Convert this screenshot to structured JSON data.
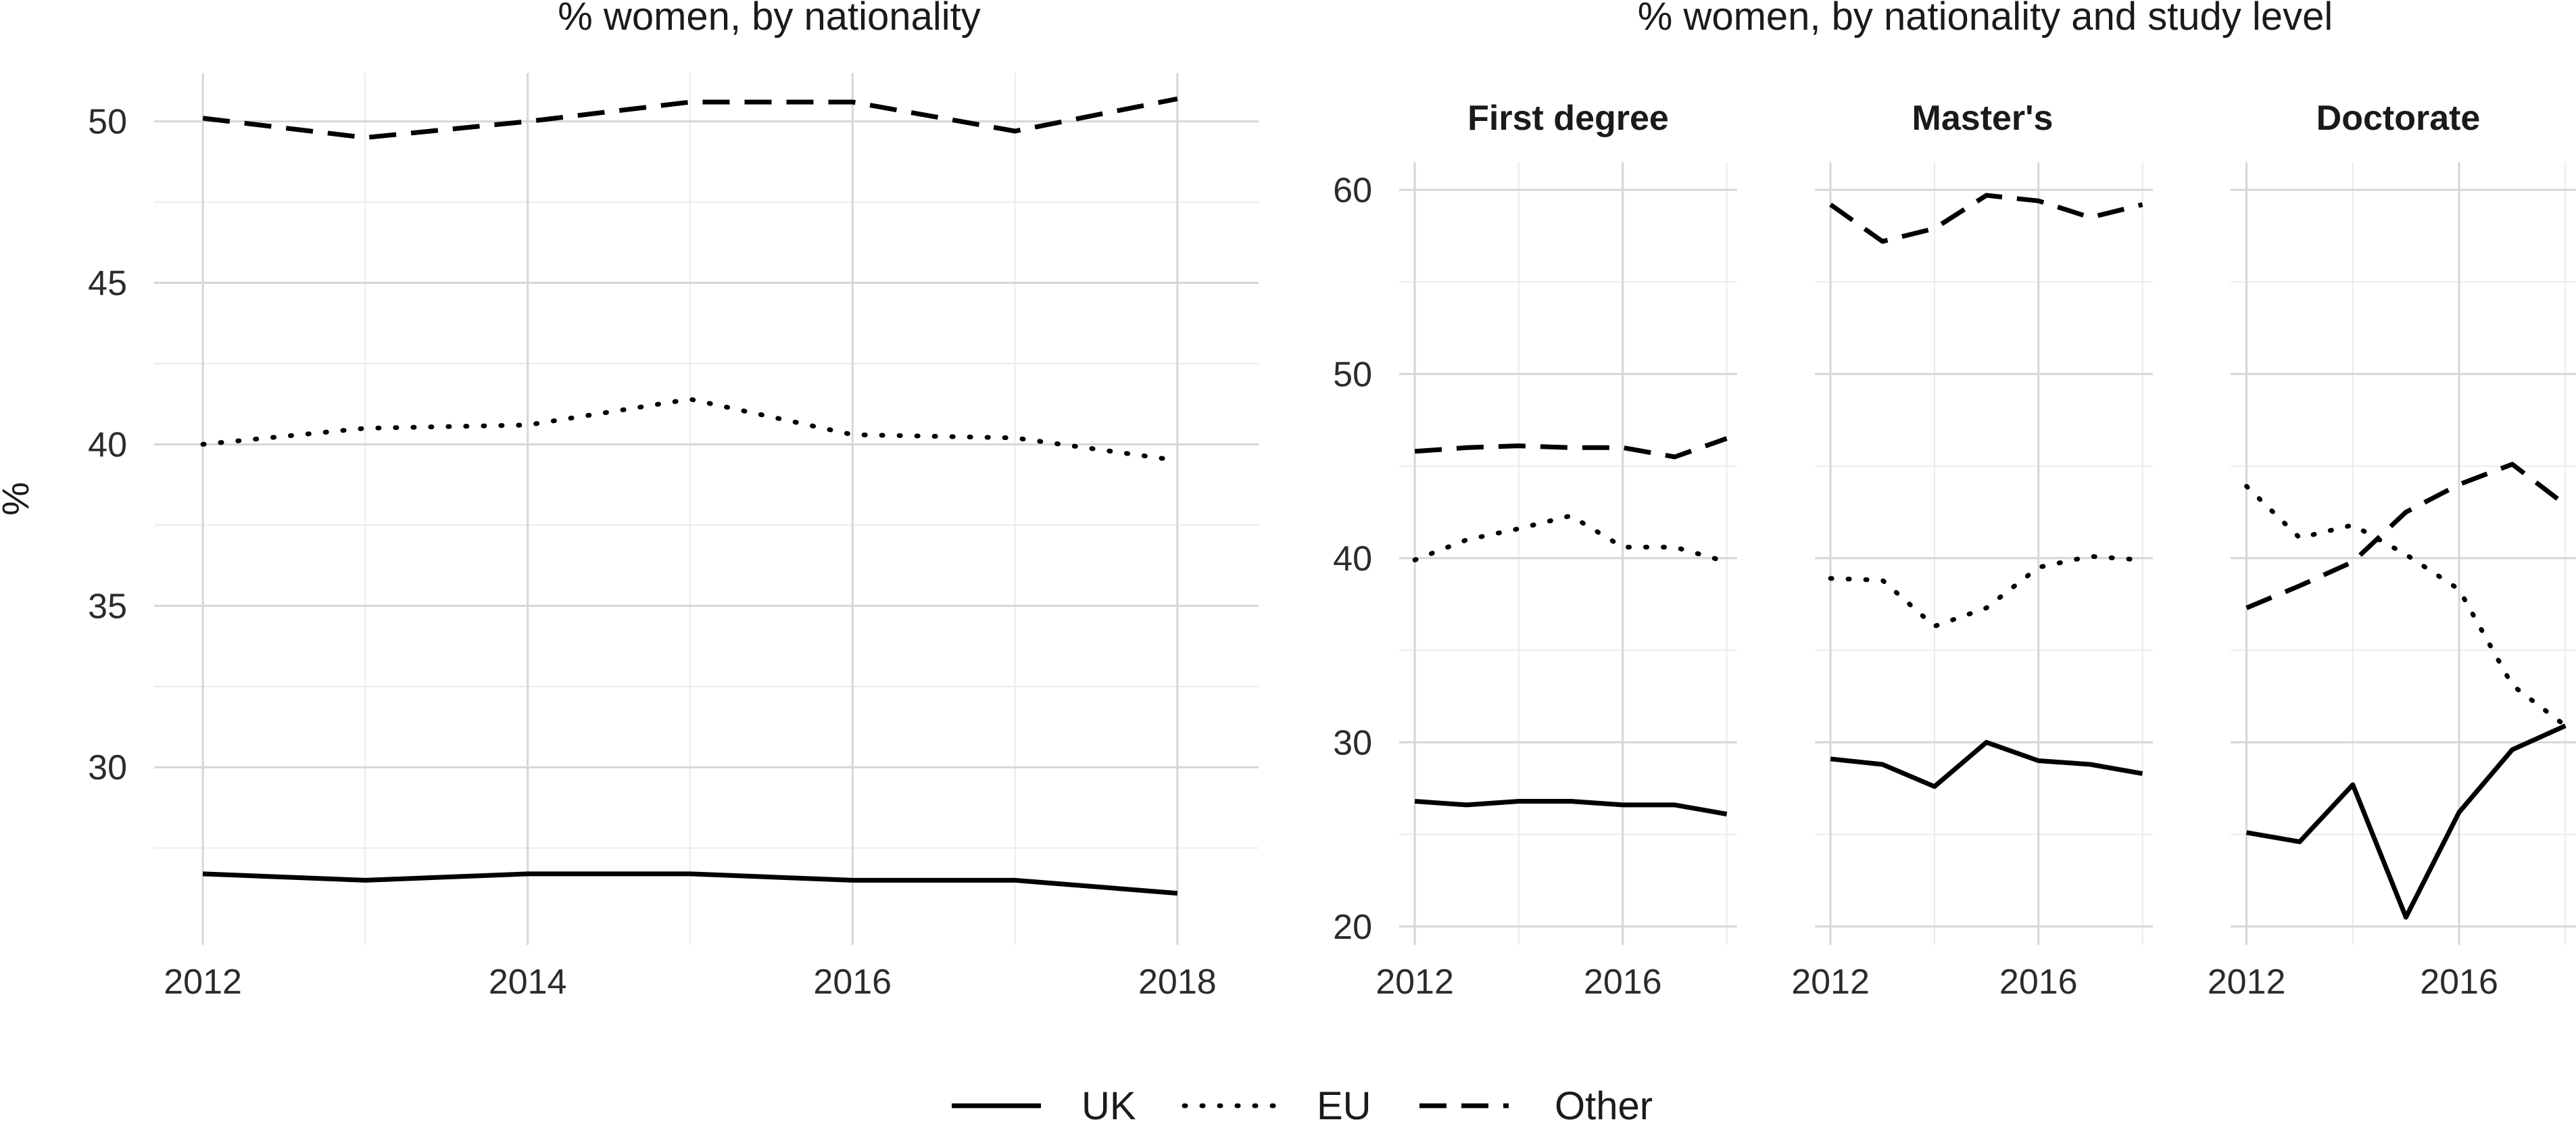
{
  "figure": {
    "legend": {
      "position": "bottom",
      "items": [
        {
          "label": "UK",
          "dash": "solid"
        },
        {
          "label": "EU",
          "dash": "dotted"
        },
        {
          "label": "Other",
          "dash": "dashed"
        }
      ]
    }
  },
  "chart_data": [
    {
      "type": "line",
      "title": "% women, by nationality",
      "ylabel": "%",
      "xlabel": "",
      "grid": true,
      "xlim": [
        2011.7,
        2018.5
      ],
      "ylim": [
        24.5,
        51.5
      ],
      "x_ticks": [
        2012,
        2014,
        2016,
        2018
      ],
      "y_ticks": [
        30,
        35,
        40,
        45,
        50
      ],
      "x": [
        2012,
        2013,
        2014,
        2015,
        2016,
        2017,
        2018
      ],
      "series": [
        {
          "name": "UK",
          "dash": "solid",
          "values": [
            26.7,
            26.5,
            26.7,
            26.7,
            26.5,
            26.5,
            26.1
          ]
        },
        {
          "name": "EU",
          "dash": "dotted",
          "values": [
            40.0,
            40.5,
            40.6,
            41.4,
            40.3,
            40.2,
            39.5
          ]
        },
        {
          "name": "Other",
          "dash": "dashed",
          "values": [
            50.1,
            49.5,
            50.0,
            50.6,
            50.6,
            49.7,
            50.7
          ]
        }
      ]
    },
    {
      "type": "line",
      "title": "% women, by nationality and study level",
      "ylabel": "",
      "xlabel": "",
      "grid": true,
      "xlim": [
        2011.7,
        2018.2
      ],
      "ylim": [
        19,
        61.5
      ],
      "x_ticks": [
        2012,
        2016
      ],
      "y_ticks": [
        20,
        30,
        40,
        50,
        60
      ],
      "x": [
        2012,
        2013,
        2014,
        2015,
        2016,
        2017,
        2018
      ],
      "facets": [
        {
          "label": "First degree",
          "series": [
            {
              "name": "UK",
              "dash": "solid",
              "values": [
                26.8,
                26.6,
                26.8,
                26.8,
                26.6,
                26.6,
                26.1
              ]
            },
            {
              "name": "EU",
              "dash": "dotted",
              "values": [
                39.9,
                41.0,
                41.6,
                42.3,
                40.6,
                40.6,
                39.8
              ]
            },
            {
              "name": "Other",
              "dash": "dashed",
              "values": [
                45.8,
                46.0,
                46.1,
                46.0,
                46.0,
                45.5,
                46.5
              ]
            }
          ]
        },
        {
          "label": "Master's",
          "series": [
            {
              "name": "UK",
              "dash": "solid",
              "values": [
                29.1,
                28.8,
                27.6,
                30.0,
                29.0,
                28.8,
                28.3
              ]
            },
            {
              "name": "EU",
              "dash": "dotted",
              "values": [
                38.9,
                38.8,
                36.3,
                37.3,
                39.5,
                40.1,
                39.9
              ]
            },
            {
              "name": "Other",
              "dash": "dashed",
              "values": [
                59.2,
                57.2,
                57.9,
                59.7,
                59.4,
                58.5,
                59.2
              ]
            }
          ]
        },
        {
          "label": "Doctorate",
          "series": [
            {
              "name": "UK",
              "dash": "solid",
              "values": [
                25.1,
                24.6,
                27.7,
                20.5,
                26.2,
                29.6,
                30.9
              ]
            },
            {
              "name": "EU",
              "dash": "dotted",
              "values": [
                43.9,
                41.1,
                41.8,
                40.2,
                38.3,
                33.1,
                30.9
              ]
            },
            {
              "name": "Other",
              "dash": "dashed",
              "values": [
                37.3,
                38.5,
                39.8,
                42.5,
                44.0,
                45.1,
                42.9
              ]
            }
          ]
        }
      ]
    }
  ]
}
